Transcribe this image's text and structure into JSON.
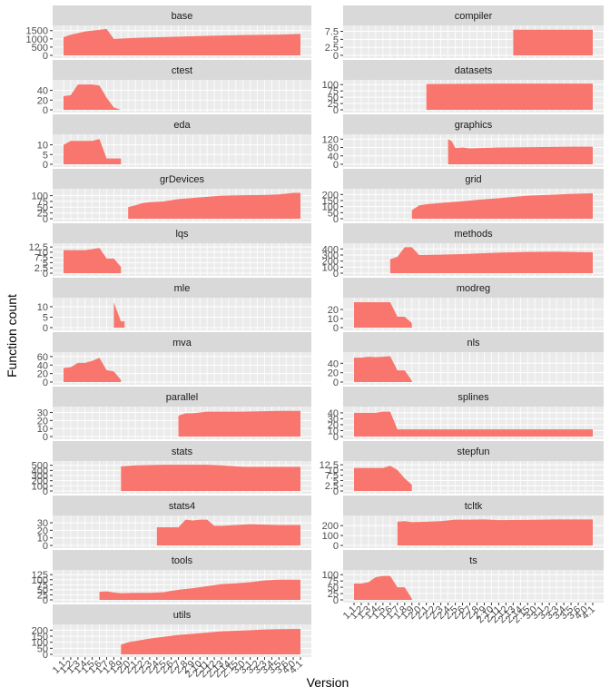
{
  "chart_data": {
    "type": "area",
    "xlabel": "Version",
    "ylabel": "Function count",
    "fill_color": "#F8766D",
    "panel_bg": "#EBEBEB",
    "strip_bg": "#D9D9D9",
    "x_tick_labels": [
      "1.1",
      "1.2",
      "1.3",
      "1.4",
      "1.5",
      "1.6",
      "1.7",
      "1.8",
      "1.9",
      "2.0",
      "2.1",
      "2.2",
      "2.3",
      "2.4",
      "2.5",
      "2.6",
      "2.7",
      "2.8",
      "2.9",
      "2.10",
      "2.11",
      "2.12",
      "2.13",
      "2.14",
      "2.15",
      "3.0",
      "3.1",
      "3.2",
      "3.3",
      "3.4",
      "3.5",
      "3.6",
      "4.0",
      "4.1"
    ],
    "panels": [
      {
        "name": "base",
        "yticks": [
          0,
          500,
          1000,
          1500
        ],
        "ymax": 1650,
        "x": [
          0,
          1,
          2,
          3,
          4,
          5,
          6,
          7,
          8,
          9,
          10,
          15,
          20,
          25,
          30,
          33
        ],
        "y": [
          1100,
          1250,
          1350,
          1450,
          1500,
          1550,
          1600,
          1000,
          1020,
          1040,
          1060,
          1120,
          1180,
          1230,
          1260,
          1300
        ]
      },
      {
        "name": "compiler",
        "yticks": [
          0.0,
          2.5,
          5.0,
          7.5
        ],
        "ymax": 8.5,
        "x": [
          22,
          23,
          33
        ],
        "y": [
          8,
          8,
          8
        ]
      },
      {
        "name": "ctest",
        "yticks": [
          0,
          20,
          40
        ],
        "ymax": 56,
        "x": [
          0,
          1,
          2,
          3,
          4,
          5,
          6,
          7,
          8
        ],
        "y": [
          28,
          30,
          52,
          52,
          52,
          50,
          25,
          5,
          0
        ]
      },
      {
        "name": "datasets",
        "yticks": [
          0,
          25,
          50,
          75,
          100
        ],
        "ymax": 108,
        "x": [
          10,
          15,
          20,
          25,
          33
        ],
        "y": [
          102,
          103,
          104,
          104,
          104
        ]
      },
      {
        "name": "eda",
        "yticks": [
          0,
          5,
          10
        ],
        "ymax": 14,
        "x": [
          0,
          1,
          2,
          3,
          4,
          5,
          6,
          7,
          8
        ],
        "y": [
          10,
          12,
          12,
          12,
          12,
          13,
          3,
          3,
          3
        ]
      },
      {
        "name": "graphics",
        "yticks": [
          0,
          40,
          80,
          120
        ],
        "ymax": 130,
        "x": [
          13,
          13.5,
          14,
          15,
          16,
          20,
          25,
          30,
          33
        ],
        "y": [
          120,
          110,
          78,
          80,
          76,
          80,
          82,
          84,
          84
        ]
      },
      {
        "name": "grDevices",
        "yticks": [
          0,
          25,
          50,
          75,
          100
        ],
        "ymax": 118,
        "x": [
          9,
          10,
          11,
          12,
          14,
          16,
          18,
          20,
          22,
          25,
          28,
          30,
          32,
          33
        ],
        "y": [
          50,
          58,
          68,
          72,
          75,
          85,
          90,
          95,
          100,
          102,
          103,
          105,
          112,
          112
        ]
      },
      {
        "name": "grid",
        "yticks": [
          0,
          50,
          100,
          150,
          200
        ],
        "ymax": 225,
        "x": [
          8,
          9,
          10,
          12,
          14,
          16,
          18,
          20,
          22,
          24,
          26,
          28,
          30,
          33
        ],
        "y": [
          70,
          110,
          120,
          130,
          140,
          150,
          160,
          170,
          180,
          190,
          195,
          200,
          205,
          210
        ]
      },
      {
        "name": "lqs",
        "yticks": [
          0.0,
          2.5,
          5.0,
          7.5,
          10.0,
          12.5
        ],
        "ymax": 13,
        "x": [
          0,
          1,
          2,
          3,
          4,
          5,
          6,
          7,
          8
        ],
        "y": [
          11,
          11,
          11,
          11,
          11.5,
          12,
          7,
          7,
          3
        ]
      },
      {
        "name": "methods",
        "yticks": [
          0,
          100,
          200,
          300,
          400
        ],
        "ymax": 450,
        "x": [
          5,
          6,
          7,
          8,
          9,
          12,
          15,
          18,
          20,
          24,
          28,
          30,
          33
        ],
        "y": [
          230,
          270,
          430,
          430,
          300,
          305,
          315,
          330,
          340,
          350,
          355,
          350,
          345
        ]
      },
      {
        "name": "mle",
        "yticks": [
          0,
          5,
          10
        ],
        "ymax": 13,
        "x": [
          7,
          8,
          8.5
        ],
        "y": [
          12,
          3,
          3
        ]
      },
      {
        "name": "modreg",
        "yticks": [
          0,
          10,
          20
        ],
        "ymax": 30,
        "x": [
          0,
          1,
          2,
          3,
          4,
          5,
          6,
          7,
          8
        ],
        "y": [
          28,
          28,
          28,
          28,
          28,
          28,
          12,
          12,
          5
        ]
      },
      {
        "name": "mva",
        "yticks": [
          0,
          20,
          40,
          60
        ],
        "ymax": 64,
        "x": [
          0,
          1,
          2,
          3,
          4,
          5,
          6,
          7,
          8
        ],
        "y": [
          33,
          35,
          45,
          45,
          50,
          57,
          28,
          25,
          5
        ]
      },
      {
        "name": "nls",
        "yticks": [
          0,
          20,
          40
        ],
        "ymax": 58,
        "x": [
          0,
          1,
          2,
          3,
          4,
          5,
          6,
          7,
          8
        ],
        "y": [
          52,
          52,
          54,
          53,
          54,
          55,
          25,
          25,
          3
        ]
      },
      {
        "name": "parallel",
        "yticks": [
          0,
          10,
          20,
          30
        ],
        "ymax": 34,
        "x": [
          16,
          17,
          18,
          20,
          22,
          25,
          30,
          33
        ],
        "y": [
          26,
          29,
          29,
          31,
          31,
          31,
          32,
          32
        ]
      },
      {
        "name": "splines",
        "yticks": [
          0,
          10,
          20,
          30,
          40
        ],
        "ymax": 46,
        "x": [
          0,
          1,
          2,
          3,
          4,
          5,
          6,
          10,
          20,
          33
        ],
        "y": [
          40,
          40,
          40,
          40,
          42,
          42,
          12,
          12,
          12,
          12
        ]
      },
      {
        "name": "stats",
        "yticks": [
          0,
          100,
          200,
          300,
          400,
          500
        ],
        "ymax": 530,
        "x": [
          8,
          10,
          14,
          18,
          20,
          22,
          25,
          30,
          33
        ],
        "y": [
          480,
          500,
          510,
          510,
          510,
          500,
          470,
          470,
          470
        ]
      },
      {
        "name": "stepfun",
        "yticks": [
          0.0,
          2.5,
          5.0,
          7.5,
          10.0,
          12.5
        ],
        "ymax": 13,
        "x": [
          0,
          1,
          2,
          3,
          4,
          5,
          6,
          7,
          8
        ],
        "y": [
          11,
          11,
          11,
          11,
          11,
          12,
          10,
          6,
          3
        ]
      },
      {
        "name": "stats4",
        "yticks": [
          0,
          10,
          20,
          30
        ],
        "ymax": 36,
        "x": [
          13,
          15,
          16,
          17,
          18,
          19,
          20,
          21,
          22,
          24,
          26,
          30,
          33
        ],
        "y": [
          24,
          24,
          24,
          34,
          33,
          34,
          34,
          26,
          26,
          27,
          28,
          27,
          27
        ]
      },
      {
        "name": "tcltk",
        "yticks": [
          0,
          100,
          200
        ],
        "ymax": 275,
        "x": [
          6,
          7,
          8,
          10,
          12,
          14,
          16,
          18,
          20,
          24,
          28,
          33
        ],
        "y": [
          240,
          245,
          235,
          240,
          245,
          260,
          260,
          262,
          255,
          258,
          262,
          262
        ]
      },
      {
        "name": "tools",
        "yticks": [
          0,
          25,
          50,
          75,
          100,
          125
        ],
        "ymax": 135,
        "x": [
          5,
          6,
          7,
          8,
          10,
          12,
          14,
          15,
          16,
          18,
          20,
          22,
          24,
          26,
          28,
          30,
          33
        ],
        "y": [
          40,
          42,
          37,
          33,
          35,
          35,
          38,
          45,
          50,
          58,
          68,
          78,
          82,
          88,
          97,
          100,
          100
        ]
      },
      {
        "name": "ts",
        "yticks": [
          0,
          25,
          50,
          75,
          100
        ],
        "ymax": 108,
        "x": [
          0,
          1,
          2,
          3,
          4,
          5,
          6,
          7,
          8
        ],
        "y": [
          65,
          65,
          70,
          90,
          95,
          95,
          50,
          50,
          5
        ]
      },
      {
        "name": "utils",
        "yticks": [
          0,
          50,
          100,
          150,
          200
        ],
        "ymax": 225,
        "x": [
          8,
          9,
          10,
          11,
          12,
          14,
          16,
          18,
          20,
          22,
          24,
          26,
          28,
          30,
          33
        ],
        "y": [
          80,
          100,
          110,
          120,
          130,
          145,
          160,
          170,
          180,
          190,
          195,
          200,
          205,
          208,
          210
        ]
      }
    ]
  }
}
